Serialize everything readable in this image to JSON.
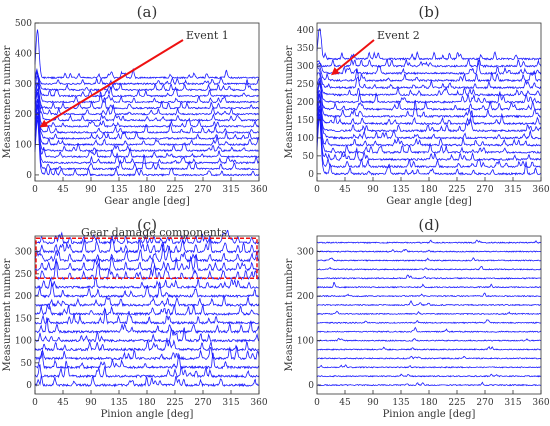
{
  "chart_data": [
    {
      "panel": "(a)",
      "type": "line",
      "xlabel": "Gear angle [deg]",
      "ylabel": "Measurement number",
      "xlim": [
        0,
        360
      ],
      "ylim": [
        -20,
        500
      ],
      "xticks": [
        0,
        45,
        90,
        135,
        180,
        225,
        270,
        315,
        360
      ],
      "yticks": [
        0,
        100,
        200,
        300,
        400,
        500
      ],
      "grid": false,
      "series_count": 17,
      "series_offsets": [
        0,
        20,
        40,
        60,
        80,
        100,
        120,
        140,
        160,
        180,
        200,
        220,
        240,
        260,
        280,
        300,
        320
      ],
      "style": "waterfall",
      "peak": {
        "x": 5,
        "y": 478
      },
      "annotation": {
        "text": "Event 1",
        "points_to": {
          "x": 10,
          "y": 160
        }
      }
    },
    {
      "panel": "(b)",
      "type": "line",
      "xlabel": "Gear angle [deg]",
      "ylabel": "Measurement number",
      "xlim": [
        0,
        360
      ],
      "ylim": [
        -20,
        420
      ],
      "xticks": [
        0,
        45,
        90,
        135,
        180,
        225,
        270,
        315,
        360
      ],
      "yticks": [
        0,
        50,
        100,
        150,
        200,
        250,
        300,
        350,
        400
      ],
      "grid": false,
      "series_count": 17,
      "series_offsets": [
        0,
        20,
        40,
        60,
        80,
        100,
        120,
        140,
        160,
        180,
        200,
        220,
        240,
        260,
        280,
        300,
        320
      ],
      "style": "waterfall",
      "peak": {
        "x": 5,
        "y": 405
      },
      "annotation": {
        "text": "Event 2",
        "points_to": {
          "x": 25,
          "y": 278
        }
      }
    },
    {
      "panel": "(c)",
      "type": "line",
      "xlabel": "Pinion angle [deg]",
      "ylabel": "Measurement number",
      "xlim": [
        0,
        360
      ],
      "ylim": [
        -20,
        335
      ],
      "xticks": [
        0,
        45,
        90,
        135,
        180,
        225,
        270,
        315,
        360
      ],
      "yticks": [
        0,
        50,
        100,
        150,
        200,
        250,
        300
      ],
      "grid": false,
      "series_count": 17,
      "series_offsets": [
        0,
        20,
        40,
        60,
        80,
        100,
        120,
        140,
        160,
        180,
        200,
        220,
        240,
        260,
        280,
        300,
        320
      ],
      "style": "waterfall",
      "annotation": {
        "text": "Gear damage components",
        "box": {
          "x0": 0,
          "x1": 360,
          "y0": 240,
          "y1": 330
        }
      }
    },
    {
      "panel": "(d)",
      "type": "line",
      "xlabel": "Pinion angle [deg]",
      "ylabel": "Measurement number",
      "xlim": [
        0,
        360
      ],
      "ylim": [
        -20,
        335
      ],
      "xticks": [
        0,
        45,
        90,
        135,
        180,
        225,
        270,
        315,
        360
      ],
      "yticks": [
        0,
        100,
        200,
        300
      ],
      "grid": false,
      "series_count": 17,
      "series_offsets": [
        0,
        20,
        40,
        60,
        80,
        100,
        120,
        140,
        160,
        180,
        200,
        220,
        240,
        260,
        280,
        300,
        320
      ],
      "style": "waterfall"
    }
  ],
  "colors": {
    "series": "#1a1aff",
    "annotation": "#ee1111",
    "axes": "#333333"
  }
}
